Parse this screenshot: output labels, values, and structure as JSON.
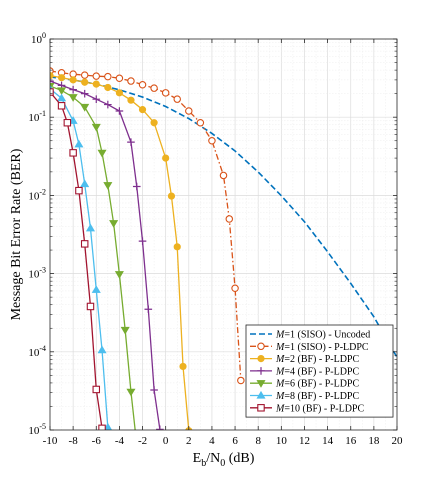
{
  "chart_data": {
    "type": "line",
    "title": "",
    "xlabel": {
      "main": "E",
      "sub1": "b",
      "mid": "/N",
      "sub2": "0",
      "tail": " (dB)"
    },
    "ylabel": "Message Bit Error Rate (BER)",
    "xlim": [
      -10,
      20
    ],
    "ylim": [
      1e-05,
      1
    ],
    "yscale": "log",
    "grid": "major and minor",
    "legend_position": "bottom-right",
    "x_ticks": [
      "-10",
      "-8",
      "-6",
      "-4",
      "-2",
      "0",
      "2",
      "4",
      "6",
      "8",
      "10",
      "12",
      "14",
      "16",
      "18",
      "20"
    ],
    "y_ticks": [
      {
        "base": "10",
        "exp": "0"
      },
      {
        "base": "10",
        "exp": "-1"
      },
      {
        "base": "10",
        "exp": "-2"
      },
      {
        "base": "10",
        "exp": "-3"
      },
      {
        "base": "10",
        "exp": "-4"
      },
      {
        "base": "10",
        "exp": "-5"
      }
    ],
    "series": [
      {
        "name": "M=1 (SISO) - Uncoded",
        "legend": {
          "m": "M",
          "rest": "=1 (SISO) - Uncoded"
        },
        "color": "#0072BD",
        "dash": "dashed",
        "marker": "none",
        "x": [
          -10,
          -8,
          -6,
          -4,
          -2,
          0,
          2,
          4,
          6,
          8,
          10,
          12,
          14,
          16,
          18,
          20
        ],
        "y": [
          0.327,
          0.299,
          0.265,
          0.224,
          0.181,
          0.137,
          0.096,
          0.062,
          0.037,
          0.0199,
          0.0099,
          0.0046,
          0.0019,
          0.00075,
          0.00028,
          8.5e-05
        ]
      },
      {
        "name": "M=1 (SISO) - P-LDPC",
        "legend": {
          "m": "M",
          "rest": "=1 (SISO) - P-LDPC"
        },
        "color": "#D95319",
        "dash": "dashdot",
        "marker": "circle",
        "x": [
          -10,
          -9,
          -8,
          -7,
          -6,
          -5,
          -4,
          -3,
          -2,
          -1,
          0,
          1,
          2,
          3,
          4,
          5,
          5.5,
          6,
          6.5
        ],
        "y": [
          0.39,
          0.37,
          0.355,
          0.345,
          0.335,
          0.33,
          0.315,
          0.29,
          0.26,
          0.235,
          0.205,
          0.17,
          0.12,
          0.085,
          0.05,
          0.018,
          0.005,
          0.00065,
          4.3e-05
        ]
      },
      {
        "name": "M=2 (BF) - P-LDPC",
        "legend": {
          "m": "M",
          "rest": "=2 (BF) - P-LDPC"
        },
        "color": "#EDB120",
        "dash": "solid",
        "marker": "circle-filled",
        "x": [
          -10,
          -9,
          -8,
          -7,
          -6,
          -5,
          -4,
          -3,
          -2,
          -1,
          0,
          0.5,
          1,
          1.5,
          2
        ],
        "y": [
          0.34,
          0.32,
          0.3,
          0.28,
          0.265,
          0.24,
          0.205,
          0.165,
          0.125,
          0.085,
          0.03,
          0.0098,
          0.0022,
          6.5e-05,
          9.8e-06
        ]
      },
      {
        "name": "M=4 (BF) - P-LDPC",
        "legend": {
          "m": "M",
          "rest": "=4 (BF) - P-LDPC"
        },
        "color": "#7E2F8E",
        "dash": "solid",
        "marker": "plus",
        "x": [
          -10,
          -9,
          -8,
          -7,
          -6,
          -5,
          -4,
          -3,
          -2.5,
          -2,
          -1.5,
          -1,
          -0.5,
          0
        ],
        "y": [
          0.29,
          0.255,
          0.225,
          0.2,
          0.17,
          0.145,
          0.12,
          0.048,
          0.013,
          0.0026,
          0.00035,
          3.25e-05,
          1.02e-05,
          5.2e-06
        ]
      },
      {
        "name": "M=6 (BF) - P-LDPC",
        "legend": {
          "m": "M",
          "rest": "=6 (BF) - P-LDPC"
        },
        "color": "#77AC30",
        "dash": "solid",
        "marker": "triangle-down",
        "x": [
          -10,
          -9,
          -8,
          -7,
          -6,
          -5.5,
          -5,
          -4.5,
          -4,
          -3.5,
          -3,
          -2.5
        ],
        "y": [
          0.25,
          0.22,
          0.18,
          0.135,
          0.075,
          0.035,
          0.0135,
          0.0044,
          0.00098,
          0.00019,
          3.08e-05,
          6.5e-06
        ]
      },
      {
        "name": "M=8 (BF) - P-LDPC",
        "legend": {
          "m": "M",
          "rest": "=8 (BF) - P-LDPC"
        },
        "color": "#4DBEEE",
        "dash": "solid",
        "marker": "triangle-up",
        "x": [
          -10,
          -9,
          -8,
          -7.5,
          -7,
          -6.5,
          -6,
          -5.5,
          -5,
          -4.5
        ],
        "y": [
          0.23,
          0.175,
          0.09,
          0.045,
          0.014,
          0.0038,
          0.00062,
          0.000105,
          1.08e-05,
          2e-06
        ]
      },
      {
        "name": "M=10 (BF) - P-LDPC",
        "legend": {
          "m": "M",
          "rest": "=10 (BF) - P-LDPC"
        },
        "color": "#A2142F",
        "dash": "solid",
        "marker": "square",
        "x": [
          -10,
          -9,
          -8.5,
          -8,
          -7.5,
          -7,
          -6.5,
          -6,
          -5.5,
          -5
        ],
        "y": [
          0.21,
          0.14,
          0.085,
          0.035,
          0.0115,
          0.0024,
          0.00038,
          3.3e-05,
          1.05e-05,
          2.3e-06
        ]
      }
    ]
  }
}
